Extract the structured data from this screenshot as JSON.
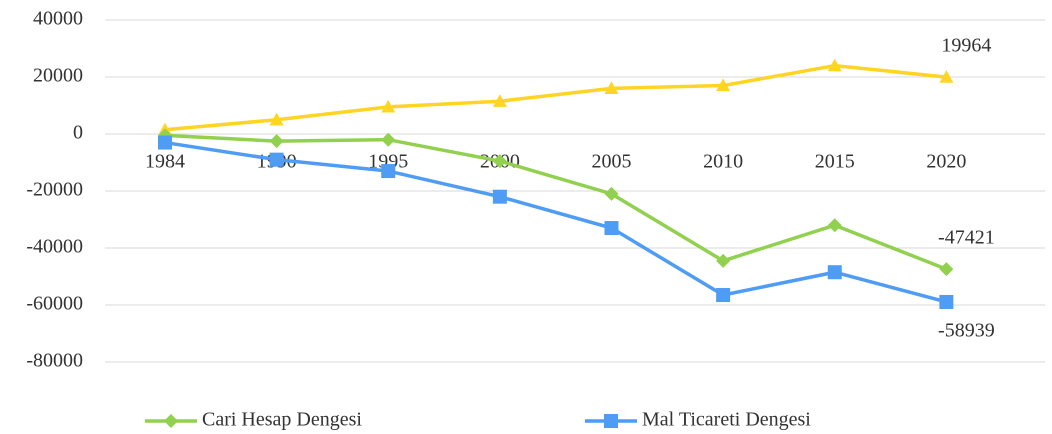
{
  "chart_data": {
    "type": "line",
    "categories": [
      "1984",
      "1990",
      "1995",
      "2000",
      "2005",
      "2010",
      "2015",
      "2020"
    ],
    "series": [
      {
        "color": "#ffd422",
        "marker": "triangle",
        "values": [
          1500,
          5000,
          9500,
          11500,
          16000,
          17000,
          24000,
          19964
        ]
      },
      {
        "name": "Cari Hesap Dengesi",
        "color": "#92d050",
        "marker": "diamond",
        "values": [
          -500,
          -2500,
          -2000,
          -9500,
          -21000,
          -44500,
          -32000,
          -47421
        ]
      },
      {
        "name": "Mal Ticareti Dengesi",
        "color": "#4f9cf5",
        "marker": "square",
        "values": [
          -3000,
          -9000,
          -13000,
          -22000,
          -33000,
          -56500,
          -48500,
          -58939
        ]
      }
    ],
    "ylim": [
      -80000,
      40000
    ],
    "yticks": [
      -80000,
      -60000,
      -40000,
      -20000,
      0,
      20000,
      40000
    ],
    "grid": true,
    "legend": "bottom",
    "data_labels": "last"
  }
}
